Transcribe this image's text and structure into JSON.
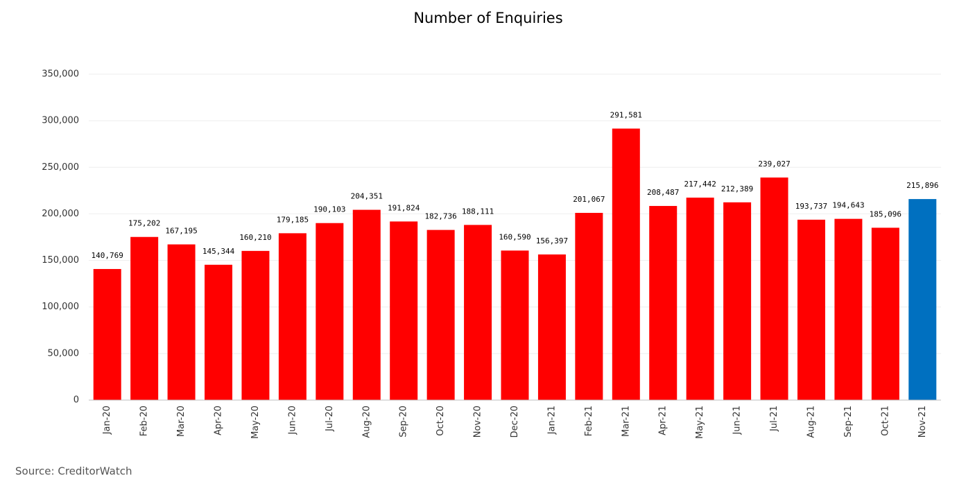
{
  "chart_data": {
    "type": "bar",
    "title": "Number of Enquiries",
    "source": "Source: CreditorWatch",
    "categories": [
      "Jan-20",
      "Feb-20",
      "Mar-20",
      "Apr-20",
      "May-20",
      "Jun-20",
      "Jul-20",
      "Aug-20",
      "Sep-20",
      "Oct-20",
      "Nov-20",
      "Dec-20",
      "Jan-21",
      "Feb-21",
      "Mar-21",
      "Apr-21",
      "May-21",
      "Jun-21",
      "Jul-21",
      "Aug-21",
      "Sep-21",
      "Oct-21",
      "Nov-21"
    ],
    "values": [
      140769,
      175202,
      167195,
      145344,
      160210,
      179185,
      190103,
      204351,
      191824,
      182736,
      188111,
      160590,
      156397,
      201067,
      291581,
      208487,
      217442,
      212389,
      239027,
      193737,
      194643,
      185096,
      215896
    ],
    "value_labels": [
      "140,769",
      "175,202",
      "167,195",
      "145,344",
      "160,210",
      "179,185",
      "190,103",
      "204,351",
      "191,824",
      "182,736",
      "188,111",
      "160,590",
      "156,397",
      "201,067",
      "291,581",
      "208,487",
      "217,442",
      "212,389",
      "239,027",
      "193,737",
      "194,643",
      "185,096",
      "215,896"
    ],
    "colors": [
      "#ff0000",
      "#ff0000",
      "#ff0000",
      "#ff0000",
      "#ff0000",
      "#ff0000",
      "#ff0000",
      "#ff0000",
      "#ff0000",
      "#ff0000",
      "#ff0000",
      "#ff0000",
      "#ff0000",
      "#ff0000",
      "#ff0000",
      "#ff0000",
      "#ff0000",
      "#ff0000",
      "#ff0000",
      "#ff0000",
      "#ff0000",
      "#ff0000",
      "#0070c0"
    ],
    "ylim": [
      0,
      350000
    ],
    "yticks": [
      0,
      {
        "value": 50000,
        "label": "50,000"
      },
      {
        "value": 100000,
        "label": "100,000"
      },
      {
        "value": 150000,
        "label": "150,000"
      },
      {
        "value": 200000,
        "label": "200,000"
      },
      {
        "value": 250000,
        "label": "250,000"
      },
      {
        "value": 300000,
        "label": "300,000"
      },
      {
        "value": 350000,
        "label": "350,000"
      }
    ],
    "grid": true
  }
}
